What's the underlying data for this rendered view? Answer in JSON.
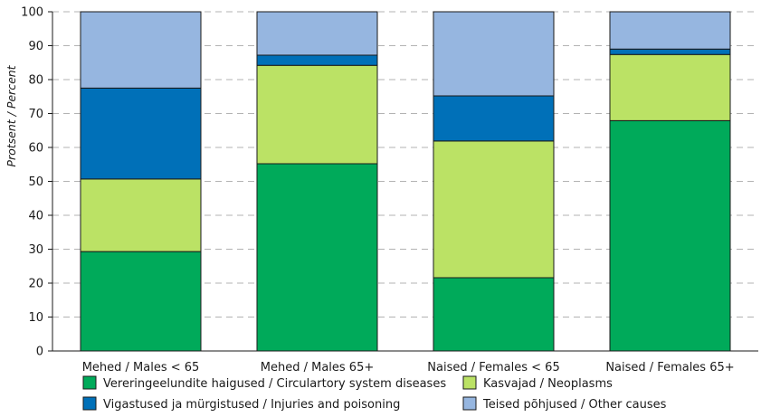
{
  "chart_data": {
    "type": "bar",
    "stacked": true,
    "ylabel": "Protsent / Percent",
    "xlabel": "",
    "ylim": [
      0,
      100
    ],
    "yticks": [
      0,
      10,
      20,
      30,
      40,
      50,
      60,
      70,
      80,
      90,
      100
    ],
    "grid": true,
    "legend_position": "bottom",
    "categories": [
      "Mehed / Males < 65",
      "Mehed / Males 65+",
      "Naised / Females < 65",
      "Naised / Females 65+"
    ],
    "series": [
      {
        "name": "Vereringeelundite haigused / Circulartory system diseases",
        "color": "#00AA5A",
        "values": [
          29.3,
          55.2,
          21.6,
          67.9
        ]
      },
      {
        "name": "Kasvajad / Neoplasms",
        "color": "#BBE265",
        "values": [
          21.4,
          29.0,
          40.3,
          19.5
        ]
      },
      {
        "name": "Vigastused ja mürgistused / Injuries and poisoning",
        "color": "#0070B8",
        "values": [
          26.8,
          3.0,
          13.3,
          1.6
        ]
      },
      {
        "name": "Teised põhjused / Other causes",
        "color": "#96B6E0",
        "values": [
          22.5,
          12.8,
          24.8,
          11.0
        ]
      }
    ],
    "legend_layout": [
      [
        0,
        1
      ],
      [
        2,
        3
      ]
    ]
  }
}
